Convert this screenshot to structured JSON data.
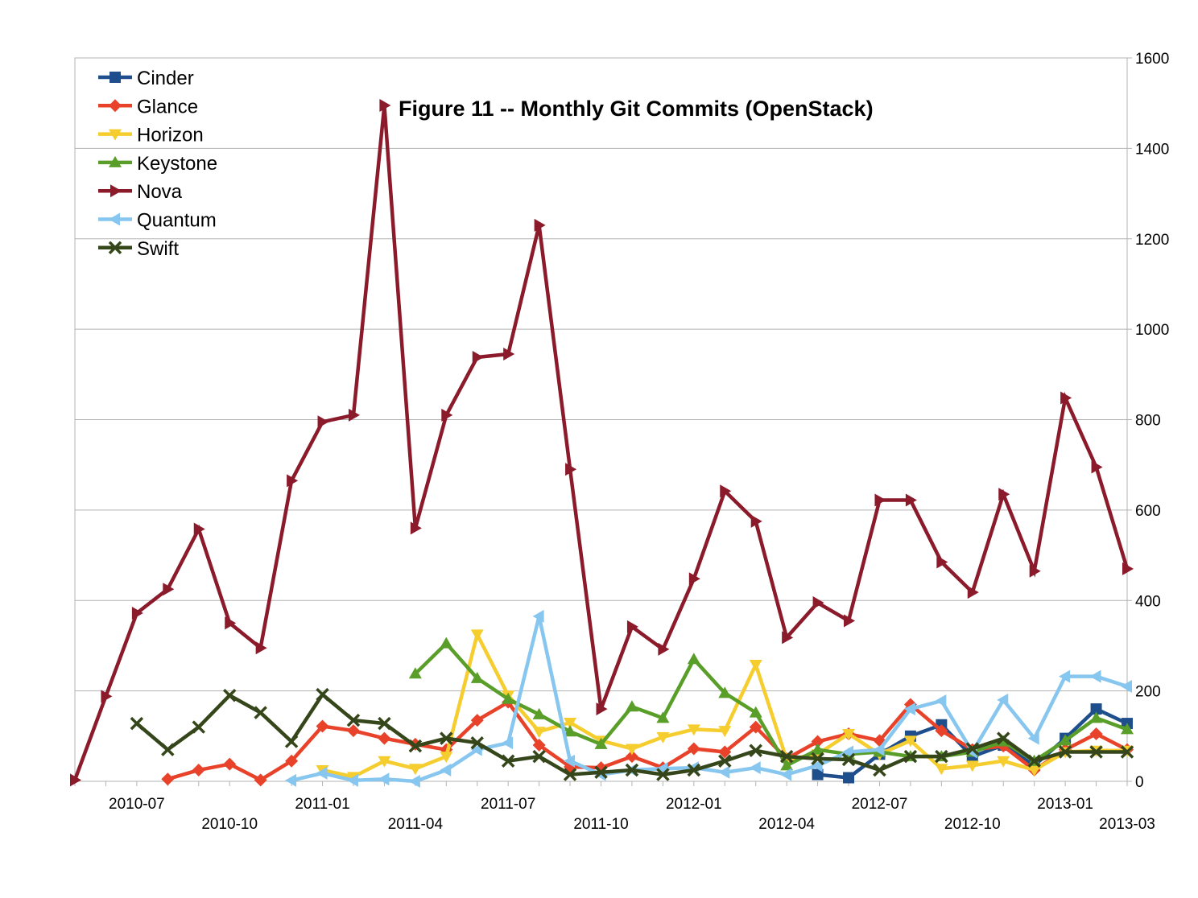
{
  "chart_data": {
    "type": "line",
    "title": "Figure 11 -- Monthly Git Commits (OpenStack)",
    "xlabel": "",
    "ylabel": "",
    "ylim": [
      0,
      1600
    ],
    "y_ticks": [
      0,
      200,
      400,
      600,
      800,
      1000,
      1200,
      1400,
      1600
    ],
    "y_axis_side": "right",
    "grid": "horizontal",
    "legend_placement": "top-left",
    "x_tick_labels": [
      {
        "month": 2,
        "label": "2010-07"
      },
      {
        "month": 5,
        "label": "2010-10"
      },
      {
        "month": 8,
        "label": "2011-01"
      },
      {
        "month": 11,
        "label": "2011-04"
      },
      {
        "month": 14,
        "label": "2011-07"
      },
      {
        "month": 17,
        "label": "2011-10"
      },
      {
        "month": 20,
        "label": "2012-01"
      },
      {
        "month": 23,
        "label": "2012-04"
      },
      {
        "month": 26,
        "label": "2012-07"
      },
      {
        "month": 29,
        "label": "2012-10"
      },
      {
        "month": 32,
        "label": "2013-01"
      },
      {
        "month": 34,
        "label": "2013-03"
      }
    ],
    "months": [
      "2010-05",
      "2010-06",
      "2010-07",
      "2010-08",
      "2010-09",
      "2010-10",
      "2010-11",
      "2010-12",
      "2011-01",
      "2011-02",
      "2011-03",
      "2011-04",
      "2011-05",
      "2011-06",
      "2011-07",
      "2011-08",
      "2011-09",
      "2011-10",
      "2011-11",
      "2011-12",
      "2012-01",
      "2012-02",
      "2012-03",
      "2012-04",
      "2012-05",
      "2012-06",
      "2012-07",
      "2012-08",
      "2012-09",
      "2012-10",
      "2012-11",
      "2012-12",
      "2013-01",
      "2013-02",
      "2013-03"
    ],
    "series": [
      {
        "name": "Cinder",
        "color": "#1f4e8c",
        "marker": "square",
        "values": [
          null,
          null,
          null,
          null,
          null,
          null,
          null,
          null,
          null,
          null,
          null,
          null,
          null,
          null,
          null,
          null,
          null,
          null,
          null,
          null,
          null,
          null,
          null,
          null,
          15,
          8,
          60,
          100,
          125,
          55,
          80,
          35,
          95,
          160,
          128
        ]
      },
      {
        "name": "Glance",
        "color": "#e8432a",
        "marker": "diamond",
        "values": [
          null,
          null,
          null,
          5,
          25,
          38,
          3,
          45,
          122,
          112,
          95,
          82,
          70,
          135,
          175,
          80,
          32,
          30,
          55,
          30,
          72,
          65,
          120,
          50,
          88,
          105,
          90,
          170,
          112,
          70,
          78,
          25,
          70,
          105,
          70
        ]
      },
      {
        "name": "Horizon",
        "color": "#f5cd2f",
        "marker": "triangle-down",
        "values": [
          null,
          null,
          null,
          null,
          null,
          null,
          null,
          null,
          25,
          10,
          45,
          28,
          55,
          325,
          190,
          110,
          130,
          90,
          72,
          98,
          115,
          112,
          258,
          48,
          60,
          105,
          60,
          90,
          28,
          35,
          45,
          25,
          65,
          68,
          68
        ]
      },
      {
        "name": "Keystone",
        "color": "#5a9e2a",
        "marker": "triangle-up",
        "values": [
          null,
          null,
          null,
          null,
          null,
          null,
          null,
          null,
          null,
          null,
          null,
          238,
          305,
          228,
          182,
          148,
          110,
          82,
          165,
          140,
          270,
          195,
          152,
          35,
          70,
          60,
          65,
          55,
          55,
          65,
          88,
          45,
          90,
          140,
          115
        ]
      },
      {
        "name": "Nova",
        "color": "#8b1a2b",
        "marker": "triangle-right",
        "values": [
          3,
          188,
          372,
          425,
          558,
          350,
          295,
          665,
          795,
          810,
          1495,
          560,
          810,
          938,
          945,
          1230,
          690,
          160,
          342,
          292,
          448,
          642,
          575,
          318,
          395,
          355,
          622,
          622,
          485,
          418,
          635,
          465,
          848,
          695,
          470
        ]
      },
      {
        "name": "Quantum",
        "color": "#86c6ef",
        "marker": "triangle-left",
        "values": [
          null,
          null,
          null,
          null,
          null,
          null,
          null,
          2,
          18,
          2,
          5,
          0,
          25,
          70,
          85,
          365,
          45,
          15,
          25,
          28,
          30,
          20,
          30,
          15,
          35,
          65,
          70,
          160,
          178,
          65,
          180,
          95,
          232,
          232,
          210
        ]
      },
      {
        "name": "Swift",
        "color": "#35461a",
        "marker": "x",
        "values": [
          null,
          null,
          128,
          70,
          120,
          190,
          152,
          88,
          192,
          135,
          128,
          78,
          95,
          85,
          45,
          55,
          15,
          20,
          25,
          15,
          25,
          45,
          68,
          55,
          50,
          48,
          25,
          55,
          55,
          72,
          95,
          45,
          65,
          65,
          65
        ]
      }
    ]
  }
}
